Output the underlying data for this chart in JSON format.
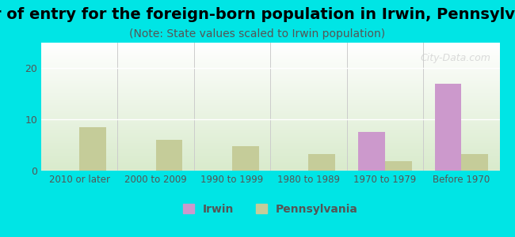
{
  "title": "Year of entry for the foreign-born population in Irwin, Pennsylvania",
  "subtitle": "(Note: State values scaled to Irwin population)",
  "categories": [
    "2010 or later",
    "2000 to 2009",
    "1990 to 1999",
    "1980 to 1989",
    "1970 to 1979",
    "Before 1970"
  ],
  "irwin_values": [
    0,
    0,
    0,
    0,
    7.5,
    17.0
  ],
  "pennsylvania_values": [
    8.5,
    6.0,
    4.8,
    3.2,
    1.8,
    3.2
  ],
  "irwin_color": "#cc99cc",
  "pennsylvania_color": "#c5cc99",
  "background_color": "#00e5e5",
  "plot_bg_top": "#ffffff",
  "plot_bg_bottom": "#d8f0d8",
  "ylim": [
    0,
    25
  ],
  "yticks": [
    0,
    10,
    20
  ],
  "bar_width": 0.35,
  "title_fontsize": 14,
  "subtitle_fontsize": 10,
  "legend_labels": [
    "Irwin",
    "Pennsylvania"
  ],
  "watermark": "City-Data.com"
}
